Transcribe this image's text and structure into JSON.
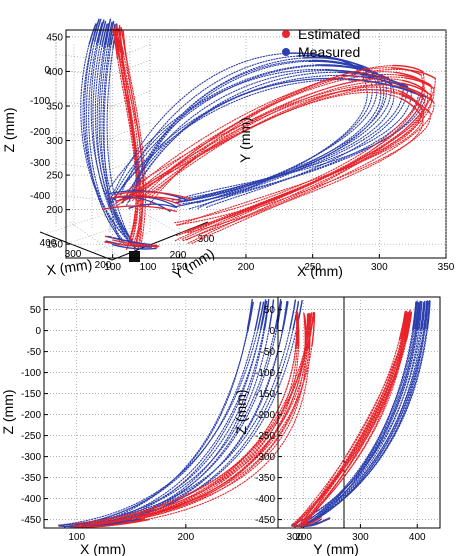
{
  "colors": {
    "estimated": "#e8232a",
    "measured": "#2b3fae",
    "grid": "#9a9a9a",
    "axis": "#000000"
  },
  "legend": {
    "estimated": "Estimated",
    "measured": "Measured"
  },
  "chart_data": [
    {
      "type": "scatter",
      "projection": "3d",
      "zlabel": "Z (mm)",
      "xlabel": "X (mm)",
      "ylabel": "Y (mm)",
      "zticks": [
        "0",
        "-100",
        "-200",
        "-300",
        "-400"
      ],
      "xticks": [
        "400",
        "300",
        "200"
      ],
      "yticks": [
        "100",
        "200",
        "300"
      ],
      "xlim": [
        150,
        420
      ],
      "ylim": [
        80,
        320
      ],
      "zlim": [
        -470,
        80
      ],
      "grid": true,
      "series": [
        {
          "name": "Estimated",
          "marker": "dotted-trajectories"
        },
        {
          "name": "Measured",
          "marker": "dotted-trajectories"
        }
      ]
    },
    {
      "type": "scatter",
      "xlabel": "X (mm)",
      "ylabel": "Y (mm)",
      "xticks": [
        "100",
        "150",
        "200",
        "250",
        "300",
        "350"
      ],
      "yticks": [
        "150",
        "200",
        "250",
        "300",
        "350",
        "400",
        "450"
      ],
      "xlim": [
        65,
        350
      ],
      "ylim": [
        130,
        460
      ],
      "grid": true,
      "legend_position": "top-left",
      "series": [
        {
          "name": "Estimated",
          "start": [
            95,
            220
          ],
          "peak": [
            320,
            445
          ],
          "end_right": [
            340,
            330
          ],
          "end": [
            150,
            145
          ]
        },
        {
          "name": "Measured",
          "start": [
            90,
            220
          ],
          "peak": [
            260,
            455
          ],
          "end_right": [
            330,
            380
          ],
          "end": [
            150,
            200
          ]
        }
      ]
    },
    {
      "type": "scatter",
      "xlabel": "X (mm)",
      "ylabel": "Z (mm)",
      "xticks": [
        "100",
        "200",
        "300"
      ],
      "yticks": [
        "50",
        "0",
        "-50",
        "-100",
        "-150",
        "-200",
        "-250",
        "-300",
        "-350",
        "-400",
        "-450"
      ],
      "xlim": [
        70,
        345
      ],
      "ylim": [
        -470,
        80
      ],
      "grid": true,
      "series": [
        {
          "name": "Estimated",
          "bottom": [
            95,
            -460
          ],
          "top": [
            315,
            50
          ]
        },
        {
          "name": "Measured",
          "bottom": [
            80,
            -465
          ],
          "top": [
            275,
            75
          ]
        }
      ]
    },
    {
      "type": "scatter",
      "xlabel": "Y (mm)",
      "ylabel": "Z (mm)",
      "xticks": [
        "200",
        "300",
        "400"
      ],
      "yticks": [
        "50",
        "0",
        "-50",
        "-100",
        "-150",
        "-200",
        "-250",
        "-300",
        "-350",
        "-400",
        "-450"
      ],
      "xlim": [
        155,
        440
      ],
      "ylim": [
        -470,
        80
      ],
      "grid": true,
      "series": [
        {
          "name": "Estimated",
          "bottom": [
            180,
            -460
          ],
          "top": [
            385,
            55
          ]
        },
        {
          "name": "Measured",
          "bottom": [
            175,
            -465
          ],
          "top": [
            420,
            75
          ]
        }
      ]
    }
  ]
}
